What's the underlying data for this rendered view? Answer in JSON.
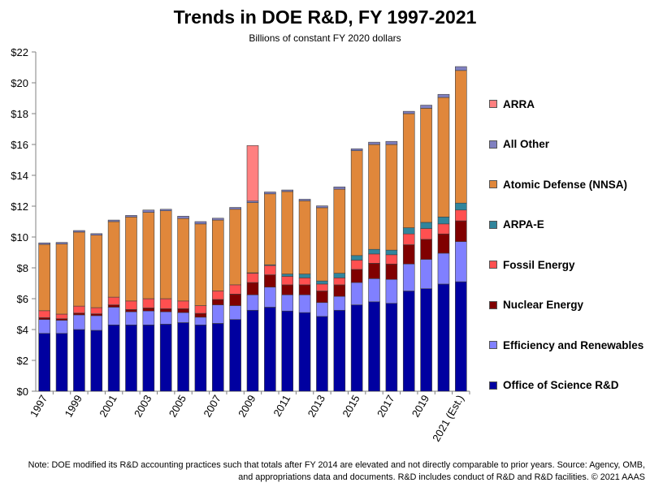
{
  "chart_data": {
    "type": "stacked-bar",
    "title": "Trends in DOE R&D, FY 1997-2021",
    "subtitle": "Billions of constant FY 2020 dollars",
    "xlabel": "",
    "ylabel": "",
    "ylim": [
      0,
      22
    ],
    "y_ticks": [
      "$0",
      "$2",
      "$4",
      "$6",
      "$8",
      "$10",
      "$12",
      "$14",
      "$16",
      "$18",
      "$20",
      "$22"
    ],
    "y_tick_values": [
      0,
      2,
      4,
      6,
      8,
      10,
      12,
      14,
      16,
      18,
      20,
      22
    ],
    "categories": [
      "1997",
      "1998",
      "1999",
      "2000",
      "2001",
      "2002",
      "2003",
      "2004",
      "2005",
      "2006",
      "2007",
      "2008",
      "2009",
      "2010",
      "2011",
      "2012",
      "2013",
      "2014",
      "2015",
      "2016",
      "2017",
      "2018",
      "2019",
      "2020",
      "2021 (Est.)"
    ],
    "x_tick_labels": [
      "1997",
      "",
      "1999",
      "",
      "2001",
      "",
      "2003",
      "",
      "2005",
      "",
      "2007",
      "",
      "2009",
      "",
      "2011",
      "",
      "2013",
      "",
      "2015",
      "",
      "2017",
      "",
      "2019",
      "",
      "2021 (Est.)"
    ],
    "grid": false,
    "legend_position": "right",
    "series": [
      {
        "name": "Office of Science R&D",
        "color": "#0000A0",
        "values": [
          3.75,
          3.75,
          4.0,
          3.95,
          4.3,
          4.3,
          4.3,
          4.35,
          4.45,
          4.3,
          4.4,
          4.65,
          5.25,
          5.45,
          5.2,
          5.1,
          4.85,
          5.25,
          5.6,
          5.8,
          5.7,
          6.5,
          6.65,
          6.95,
          7.1
        ]
      },
      {
        "name": "Efficiency and Renewables",
        "color": "#8080FF",
        "values": [
          0.9,
          0.85,
          0.95,
          0.95,
          1.15,
          0.85,
          0.9,
          0.8,
          0.65,
          0.5,
          1.2,
          0.9,
          1.0,
          1.3,
          1.05,
          1.15,
          0.9,
          0.9,
          1.45,
          1.5,
          1.55,
          1.75,
          1.9,
          2.0,
          2.6
        ]
      },
      {
        "name": "Nuclear Energy",
        "color": "#800000",
        "values": [
          0.12,
          0.1,
          0.12,
          0.12,
          0.15,
          0.15,
          0.2,
          0.2,
          0.25,
          0.25,
          0.35,
          0.75,
          0.8,
          0.8,
          0.65,
          0.65,
          0.75,
          0.75,
          0.85,
          1.0,
          1.0,
          1.25,
          1.3,
          1.25,
          1.35
        ]
      },
      {
        "name": "Fossil Energy",
        "color": "#FF5050",
        "values": [
          0.45,
          0.3,
          0.45,
          0.4,
          0.5,
          0.55,
          0.6,
          0.65,
          0.5,
          0.5,
          0.55,
          0.6,
          0.6,
          0.6,
          0.55,
          0.45,
          0.45,
          0.45,
          0.6,
          0.6,
          0.6,
          0.7,
          0.7,
          0.65,
          0.7
        ]
      },
      {
        "name": "ARPA-E",
        "color": "#31859C",
        "values": [
          0,
          0,
          0,
          0,
          0,
          0,
          0,
          0,
          0,
          0,
          0,
          0,
          0.03,
          0.05,
          0.15,
          0.25,
          0.2,
          0.3,
          0.3,
          0.3,
          0.3,
          0.4,
          0.4,
          0.45,
          0.45
        ]
      },
      {
        "name": "Atomic Defense (NNSA)",
        "color": "#E0873B",
        "values": [
          4.3,
          4.55,
          4.8,
          4.7,
          4.9,
          5.45,
          5.6,
          5.7,
          5.35,
          5.3,
          4.6,
          4.9,
          4.55,
          4.6,
          5.35,
          4.75,
          4.75,
          5.45,
          6.8,
          6.8,
          6.85,
          7.4,
          7.4,
          7.75,
          8.6
        ]
      },
      {
        "name": "All Other",
        "color": "#8080C0",
        "values": [
          0.1,
          0.1,
          0.1,
          0.1,
          0.1,
          0.1,
          0.15,
          0.1,
          0.15,
          0.15,
          0.12,
          0.12,
          0.1,
          0.12,
          0.1,
          0.1,
          0.12,
          0.15,
          0.12,
          0.15,
          0.2,
          0.15,
          0.2,
          0.2,
          0.25
        ]
      },
      {
        "name": "ARRA",
        "color": "#FF8080",
        "values": [
          0,
          0,
          0,
          0,
          0,
          0,
          0,
          0,
          0,
          0,
          0,
          0,
          3.6,
          0,
          0,
          0,
          0,
          0,
          0,
          0,
          0,
          0,
          0,
          0,
          0
        ]
      }
    ],
    "note": "Note: DOE modified its R&D accounting practices such that totals after FY 2014  are elevated and not directly comparable to prior years. Source: Agency, OMB, and appropriations data and documents. R&D includes conduct of R&D and R&D facilities. © 2021 AAAS"
  }
}
